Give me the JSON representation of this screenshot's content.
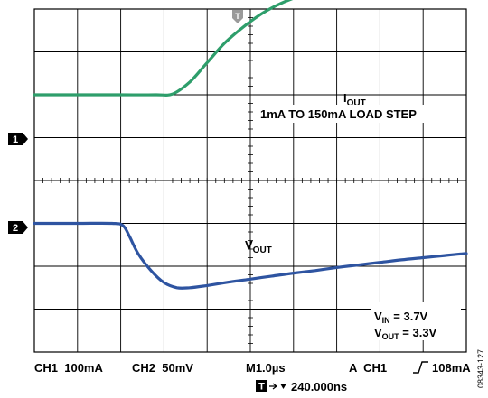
{
  "chart_data": {
    "type": "line",
    "grid": true,
    "x_divisions": 10,
    "y_divisions": 8,
    "xlim_div": [
      0,
      10
    ],
    "ylim_div": [
      0,
      8
    ],
    "series": [
      {
        "name": "CH1",
        "marker": "1",
        "color": "#2e9e6b",
        "x": [
          0,
          1,
          2,
          2.8,
          3.2,
          3.6,
          4.0,
          4.4,
          4.8,
          5.2,
          5.6,
          6.0,
          6.4,
          6.8,
          7.2,
          7.6,
          8.0,
          8.4,
          8.8,
          9.2,
          9.6,
          10.0
        ],
        "y": [
          6.0,
          6.0,
          6.0,
          6.0,
          6.02,
          6.3,
          6.75,
          7.2,
          7.55,
          7.85,
          8.08,
          8.25,
          8.36,
          8.44,
          8.48,
          8.48,
          8.45,
          8.4,
          8.36,
          8.33,
          8.3,
          8.28
        ]
      },
      {
        "name": "CH2",
        "marker": "2",
        "color": "#2e54a1",
        "x": [
          0,
          1,
          1.8,
          2.05,
          2.2,
          2.4,
          2.7,
          3.0,
          3.3,
          3.6,
          4.0,
          4.5,
          5.0,
          5.5,
          6.0,
          6.5,
          7.0,
          7.5,
          8.0,
          8.5,
          9.0,
          9.5,
          10.0
        ],
        "y": [
          3.0,
          3.0,
          3.0,
          2.95,
          2.7,
          2.3,
          1.9,
          1.62,
          1.5,
          1.5,
          1.55,
          1.63,
          1.7,
          1.77,
          1.84,
          1.9,
          1.97,
          2.03,
          2.09,
          2.15,
          2.2,
          2.25,
          2.3
        ]
      }
    ],
    "annotations": {
      "iout_label": "I",
      "iout_sub": "OUT",
      "load_step": "1mA TO 150mA LOAD STEP",
      "vout_label": "V",
      "vout_sub": "OUT",
      "vin_main": "V",
      "vin_sub": "IN",
      "vin_value": " = 3.7V",
      "vout2_main": "V",
      "vout2_sub": "OUT",
      "vout2_value": " = 3.3V"
    },
    "trigger_marker": "T",
    "ch1_marker": "1",
    "ch2_marker": "2"
  },
  "footer": {
    "ch1": "CH1  100mA",
    "ch2": "CH2  50mV",
    "timebase": "M1.0µs",
    "trigger_a": "A  CH1",
    "trigger_level": "108mA",
    "trigger_icon": "T",
    "trigger_offset": "240.000ns"
  },
  "figure_id": "08343-127"
}
